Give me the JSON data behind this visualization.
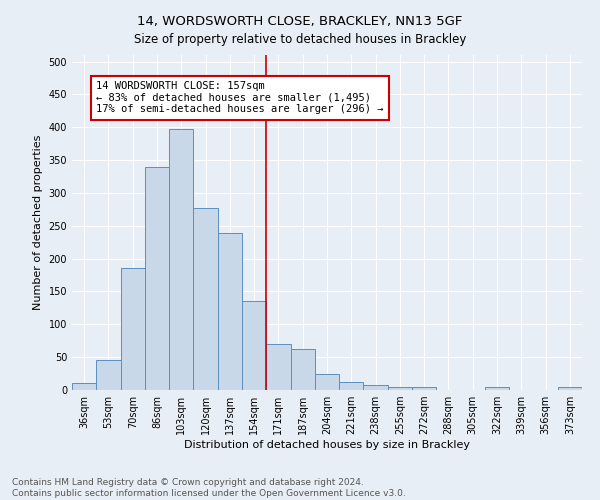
{
  "title": "14, WORDSWORTH CLOSE, BRACKLEY, NN13 5GF",
  "subtitle": "Size of property relative to detached houses in Brackley",
  "xlabel": "Distribution of detached houses by size in Brackley",
  "ylabel": "Number of detached properties",
  "bar_labels": [
    "36sqm",
    "53sqm",
    "70sqm",
    "86sqm",
    "103sqm",
    "120sqm",
    "137sqm",
    "154sqm",
    "171sqm",
    "187sqm",
    "204sqm",
    "221sqm",
    "238sqm",
    "255sqm",
    "272sqm",
    "288sqm",
    "305sqm",
    "322sqm",
    "339sqm",
    "356sqm",
    "373sqm"
  ],
  "bar_values": [
    10,
    46,
    186,
    339,
    398,
    277,
    239,
    135,
    70,
    63,
    25,
    12,
    7,
    5,
    5,
    0,
    0,
    5,
    0,
    0,
    5
  ],
  "bar_color": "#c8d8e8",
  "bar_edge_color": "#5a8fc0",
  "vline_x": 7.5,
  "vline_color": "#cc0000",
  "annotation_line1": "14 WORDSWORTH CLOSE: 157sqm",
  "annotation_line2": "← 83% of detached houses are smaller (1,495)",
  "annotation_line3": "17% of semi-detached houses are larger (296) →",
  "annotation_box_color": "#ffffff",
  "annotation_box_edge": "#cc0000",
  "ylim": [
    0,
    510
  ],
  "yticks": [
    0,
    50,
    100,
    150,
    200,
    250,
    300,
    350,
    400,
    450,
    500
  ],
  "footnote": "Contains HM Land Registry data © Crown copyright and database right 2024.\nContains public sector information licensed under the Open Government Licence v3.0.",
  "bg_color": "#e8eef5",
  "grid_color": "#ffffff",
  "title_fontsize": 9.5,
  "subtitle_fontsize": 8.5,
  "axis_label_fontsize": 8,
  "tick_fontsize": 7,
  "annotation_fontsize": 7.5,
  "footnote_fontsize": 6.5
}
